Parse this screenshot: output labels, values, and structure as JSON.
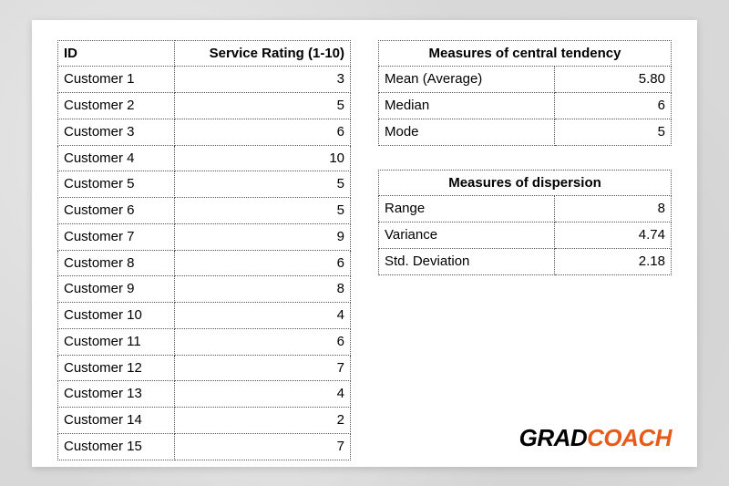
{
  "main_table": {
    "headers": {
      "id": "ID",
      "rating": "Service Rating (1-10)"
    },
    "rows": [
      {
        "id": "Customer 1",
        "rating": "3"
      },
      {
        "id": "Customer 2",
        "rating": "5"
      },
      {
        "id": "Customer 3",
        "rating": "6"
      },
      {
        "id": "Customer 4",
        "rating": "10"
      },
      {
        "id": "Customer 5",
        "rating": "5"
      },
      {
        "id": "Customer 6",
        "rating": "5"
      },
      {
        "id": "Customer 7",
        "rating": "9"
      },
      {
        "id": "Customer 8",
        "rating": "6"
      },
      {
        "id": "Customer 9",
        "rating": "8"
      },
      {
        "id": "Customer 10",
        "rating": "4"
      },
      {
        "id": "Customer 11",
        "rating": "6"
      },
      {
        "id": "Customer 12",
        "rating": "7"
      },
      {
        "id": "Customer 13",
        "rating": "4"
      },
      {
        "id": "Customer 14",
        "rating": "2"
      },
      {
        "id": "Customer 15",
        "rating": "7"
      }
    ]
  },
  "central_tendency": {
    "title": "Measures of central tendency",
    "rows": [
      {
        "label": "Mean (Average)",
        "value": "5.80"
      },
      {
        "label": "Median",
        "value": "6"
      },
      {
        "label": "Mode",
        "value": "5"
      }
    ]
  },
  "dispersion": {
    "title": "Measures of dispersion",
    "rows": [
      {
        "label": "Range",
        "value": "8"
      },
      {
        "label": "Variance",
        "value": "4.74"
      },
      {
        "label": "Std. Deviation",
        "value": "2.18"
      }
    ]
  },
  "logo": {
    "part1": "GRAD",
    "part2": "COACH"
  },
  "style": {
    "card_bg": "#ffffff",
    "page_bg": "#d8d8d8",
    "border_color": "#555555",
    "text_color": "#000000",
    "accent_color": "#e85a1a",
    "font_size_table": 15,
    "font_size_logo": 26,
    "main_col_widths": [
      "40%",
      "60%"
    ],
    "stat_col_widths": [
      "60%",
      "40%"
    ]
  }
}
